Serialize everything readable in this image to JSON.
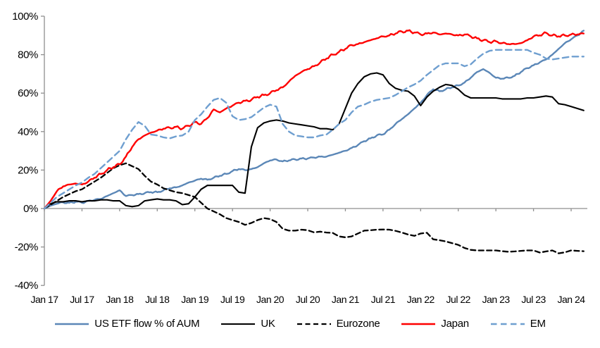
{
  "chart_data": {
    "type": "line",
    "title": "",
    "xlabel": "",
    "ylabel": "",
    "x_unit": "monthly, Jan 2017 - Mar 2024",
    "x_tick_labels": [
      "Jan 17",
      "Jul 17",
      "Jan 18",
      "Jul 18",
      "Jan 19",
      "Jul 19",
      "Jan 20",
      "Jul 20",
      "Jan 21",
      "Jul 21",
      "Jan 22",
      "Jul 22",
      "Jan 23",
      "Jul 23",
      "Jan 24"
    ],
    "y_tick_labels": [
      "100%",
      "80%",
      "60%",
      "40%",
      "20%",
      "0%",
      "-20%",
      "-40%"
    ],
    "y_tick_values": [
      100,
      80,
      60,
      40,
      20,
      0,
      -20,
      -40
    ],
    "ylim": [
      -40,
      100
    ],
    "grid": false,
    "legend_position": "bottom",
    "axis_color": "#8f8f8f",
    "text_color": "#000000",
    "series": [
      {
        "name": "US ETF flow % of AUM",
        "color": "#5b87b7",
        "dash": "solid",
        "width": 2.4,
        "noise": 0.45,
        "values": [
          0,
          1.5,
          2.5,
          3.2,
          3,
          3.5,
          3,
          4,
          4.5,
          5,
          6.5,
          8,
          9.5,
          6.5,
          7,
          7.5,
          8,
          8.5,
          8.5,
          9.5,
          10.5,
          11,
          12,
          13.5,
          14.5,
          15.5,
          15,
          16,
          17,
          18,
          19.5,
          20.5,
          20,
          20.5,
          21.5,
          23.5,
          25,
          25.5,
          24.5,
          25,
          25.5,
          26,
          26,
          26.5,
          27,
          27,
          28,
          29,
          30,
          31.5,
          33,
          35,
          36.5,
          38,
          38.5,
          41,
          44,
          46.5,
          49,
          52,
          55,
          59,
          62,
          61,
          62,
          63,
          64,
          65.5,
          68,
          71,
          72.5,
          70.5,
          68,
          67.5,
          68,
          69,
          71,
          73,
          74.5,
          76,
          77.5,
          80,
          83,
          86,
          88,
          90,
          92.5
        ]
      },
      {
        "name": "UK",
        "color": "#000000",
        "dash": "solid",
        "width": 2.1,
        "noise": 0,
        "values": [
          0,
          2.5,
          3.5,
          3.5,
          4,
          4,
          3.5,
          4,
          4,
          4.5,
          4.5,
          4,
          4,
          1.5,
          1,
          1.5,
          4,
          4.5,
          5,
          4.5,
          4.5,
          4,
          2,
          2.5,
          6,
          10,
          12,
          12,
          12,
          12,
          12,
          8.5,
          8,
          32,
          42,
          44.5,
          45.5,
          46,
          45.5,
          44.5,
          44,
          43.5,
          43,
          42.5,
          41.5,
          41.5,
          41,
          44,
          52,
          60,
          65,
          68.5,
          70,
          70.5,
          69.5,
          65,
          62.5,
          61.5,
          61,
          58.5,
          53.5,
          58,
          61,
          63,
          64.5,
          64,
          62,
          59,
          57.5,
          57.5,
          57.5,
          57.5,
          57.5,
          57,
          57,
          57,
          57,
          57.5,
          57.5,
          58,
          58.5,
          58,
          54.5,
          54,
          53,
          52,
          51
        ]
      },
      {
        "name": "Eurozone",
        "color": "#000000",
        "dash": "7 4.5",
        "width": 2.3,
        "noise": 0,
        "values": [
          0,
          2,
          4,
          6,
          7.5,
          9,
          10,
          12,
          14,
          16,
          18.5,
          21,
          22.5,
          23.5,
          22,
          20.5,
          17,
          14,
          12.5,
          10.5,
          9.5,
          8.5,
          8,
          7,
          6,
          3,
          0,
          -1.5,
          -3,
          -5,
          -6,
          -7,
          -8.5,
          -7.5,
          -6,
          -5,
          -5.5,
          -7,
          -10.5,
          -11.5,
          -11.5,
          -11,
          -11.3,
          -12.4,
          -12,
          -12.5,
          -12.7,
          -14.5,
          -15,
          -14.5,
          -13,
          -11.5,
          -11.3,
          -11,
          -10.9,
          -11,
          -11.6,
          -12.5,
          -13.5,
          -14.2,
          -13,
          -12.6,
          -16,
          -16.5,
          -17.1,
          -18,
          -18.9,
          -20.5,
          -21.5,
          -21.8,
          -21.8,
          -21.8,
          -21.8,
          -22.2,
          -22.5,
          -22.3,
          -22,
          -21.8,
          -21.8,
          -22.9,
          -22.3,
          -21.8,
          -23.3,
          -22.8,
          -21.8,
          -22,
          -22.2
        ]
      },
      {
        "name": "Japan",
        "color": "#fe0000",
        "dash": "solid",
        "width": 2.4,
        "noise": 0.7,
        "values": [
          0,
          4,
          9,
          11.5,
          12.5,
          13,
          12.5,
          14,
          16,
          18,
          20,
          21.5,
          23,
          27,
          32,
          36,
          38,
          39.5,
          40.5,
          41.5,
          42,
          42.5,
          41.5,
          43,
          45,
          44,
          47,
          51.5,
          50,
          52,
          53.5,
          55,
          56,
          56.5,
          58,
          59,
          60,
          61.5,
          63,
          66,
          69,
          71,
          72.5,
          74,
          76,
          78,
          80,
          81.5,
          83,
          85,
          85.5,
          86.5,
          87.5,
          88.5,
          89.5,
          90,
          91,
          92,
          92.5,
          91.5,
          90.5,
          91,
          91.5,
          90.5,
          91,
          90.5,
          90,
          90.5,
          89.5,
          88.5,
          87.5,
          86.5,
          87,
          86,
          85.5,
          85.5,
          86,
          87.5,
          89.5,
          90,
          91.4,
          90,
          89.5,
          90,
          90.5,
          90.5,
          91
        ]
      },
      {
        "name": "EM",
        "color": "#6f9fd0",
        "dash": "8.5 5.5",
        "width": 2.4,
        "noise": 0,
        "values": [
          0,
          3,
          6,
          8,
          10,
          12,
          13.5,
          16,
          18,
          21,
          24,
          27,
          30,
          36,
          41,
          45,
          43,
          38.5,
          38,
          37,
          36.5,
          37.5,
          38,
          40,
          46,
          49,
          53,
          56.5,
          57.5,
          55,
          48,
          46,
          46.5,
          47.5,
          50,
          52.5,
          54,
          53,
          44,
          40,
          38,
          37.5,
          37,
          37,
          38,
          38.5,
          41,
          44,
          46,
          50,
          53,
          54,
          55.5,
          56.5,
          57,
          57.5,
          59,
          61,
          63,
          64.5,
          66.5,
          69.5,
          72,
          74.5,
          75.5,
          75.5,
          75.5,
          74,
          75,
          78,
          80.5,
          82,
          82.5,
          82.5,
          82.5,
          82.5,
          82.5,
          82.5,
          81,
          80,
          78,
          77.5,
          78,
          78.5,
          79,
          79,
          79
        ]
      }
    ]
  }
}
